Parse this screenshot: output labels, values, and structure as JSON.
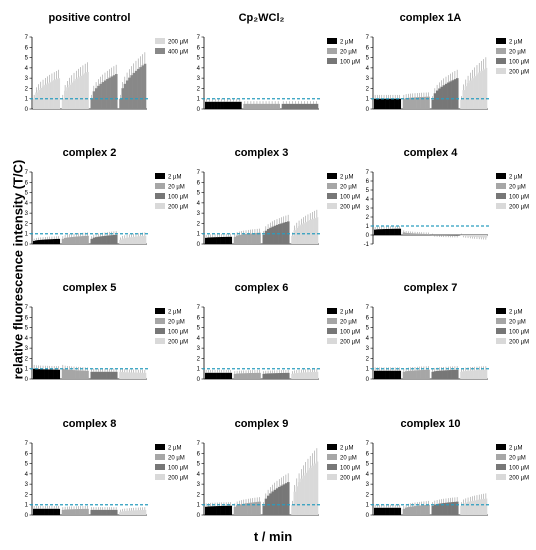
{
  "figure": {
    "ylabel": "relative fluorescence intensity (T/C)",
    "xlabel": "t / min"
  },
  "colors": {
    "2 µM": "#000000",
    "20 µM": "#a6a6a6",
    "100 µM": "#777777",
    "200 µM": "#d9d9d9",
    "reference_line": "#2a9dbf"
  },
  "chart_data": [
    {
      "type": "bar",
      "title": "positive control",
      "ylim": [
        0,
        7
      ],
      "yticks": [
        0,
        1,
        2,
        3,
        4,
        5,
        6,
        7
      ],
      "reference_line": 1,
      "series": [
        {
          "name": "200 µM",
          "segments": [
            [
              1.0,
              3.0
            ],
            [
              1.0,
              3.6
            ]
          ]
        },
        {
          "name": "400 µM",
          "segments": [
            [
              1.0,
              3.4
            ],
            [
              1.0,
              4.4
            ]
          ]
        }
      ]
    },
    {
      "type": "bar",
      "title": "Cp₂WCl₂",
      "ylim": [
        0,
        7
      ],
      "yticks": [
        0,
        1,
        2,
        3,
        4,
        5,
        6,
        7
      ],
      "reference_line": 1,
      "series": [
        {
          "name": "2 µM",
          "segments": [
            [
              0.7,
              0.7
            ]
          ]
        },
        {
          "name": "20 µM",
          "segments": [
            [
              0.5,
              0.5
            ]
          ]
        },
        {
          "name": "100 µM",
          "segments": [
            [
              0.5,
              0.5
            ]
          ]
        }
      ]
    },
    {
      "type": "bar",
      "title": "complex 1A",
      "ylim": [
        0,
        7
      ],
      "yticks": [
        0,
        1,
        2,
        3,
        4,
        5,
        6,
        7
      ],
      "reference_line": 1,
      "series": [
        {
          "name": "2 µM",
          "segments": [
            [
              1.0,
              1.0
            ]
          ]
        },
        {
          "name": "20 µM",
          "segments": [
            [
              1.0,
              1.2
            ]
          ]
        },
        {
          "name": "100 µM",
          "segments": [
            [
              0.9,
              3.0
            ]
          ]
        },
        {
          "name": "200 µM",
          "segments": [
            [
              0.9,
              4.0
            ]
          ]
        }
      ]
    },
    {
      "type": "bar",
      "title": "complex 2",
      "ylim": [
        0,
        7
      ],
      "yticks": [
        0,
        1,
        2,
        3,
        4,
        5,
        6,
        7
      ],
      "reference_line": 1,
      "series": [
        {
          "name": "2 µM",
          "segments": [
            [
              0.3,
              0.5
            ]
          ]
        },
        {
          "name": "20 µM",
          "segments": [
            [
              0.5,
              0.8
            ]
          ]
        },
        {
          "name": "100 µM",
          "segments": [
            [
              0.5,
              0.9
            ]
          ]
        },
        {
          "name": "200 µM",
          "segments": [
            [
              0.4,
              0.8
            ]
          ]
        }
      ]
    },
    {
      "type": "bar",
      "title": "complex 3",
      "ylim": [
        0,
        7
      ],
      "yticks": [
        0,
        1,
        2,
        3,
        4,
        5,
        6,
        7
      ],
      "reference_line": 1,
      "series": [
        {
          "name": "2 µM",
          "segments": [
            [
              0.6,
              0.7
            ]
          ]
        },
        {
          "name": "20 µM",
          "segments": [
            [
              0.7,
              1.1
            ]
          ]
        },
        {
          "name": "100 µM",
          "segments": [
            [
              0.9,
              2.2
            ]
          ]
        },
        {
          "name": "200 µM",
          "segments": [
            [
              0.8,
              2.6
            ]
          ]
        }
      ]
    },
    {
      "type": "bar",
      "title": "complex 4",
      "ylim": [
        -1,
        7
      ],
      "yticks": [
        -1,
        0,
        1,
        2,
        3,
        4,
        5,
        6,
        7
      ],
      "reference_line": 1,
      "series": [
        {
          "name": "2 µM",
          "segments": [
            [
              0.6,
              0.7
            ]
          ]
        },
        {
          "name": "20 µM",
          "segments": [
            [
              0.3,
              0.1
            ]
          ]
        },
        {
          "name": "100 µM",
          "segments": [
            [
              0.0,
              -0.1
            ]
          ]
        },
        {
          "name": "200 µM",
          "segments": [
            [
              0.0,
              -0.3
            ]
          ]
        }
      ]
    },
    {
      "type": "bar",
      "title": "complex 5",
      "ylim": [
        0,
        7
      ],
      "yticks": [
        0,
        1,
        2,
        3,
        4,
        5,
        6,
        7
      ],
      "reference_line": 1,
      "series": [
        {
          "name": "2 µM",
          "segments": [
            [
              1.0,
              0.9
            ]
          ]
        },
        {
          "name": "20 µM",
          "segments": [
            [
              1.0,
              0.8
            ]
          ]
        },
        {
          "name": "100 µM",
          "segments": [
            [
              0.7,
              0.7
            ]
          ]
        },
        {
          "name": "200 µM",
          "segments": [
            [
              0.7,
              0.6
            ]
          ]
        }
      ]
    },
    {
      "type": "bar",
      "title": "complex 6",
      "ylim": [
        0,
        7
      ],
      "yticks": [
        0,
        1,
        2,
        3,
        4,
        5,
        6,
        7
      ],
      "reference_line": 1,
      "series": [
        {
          "name": "2 µM",
          "segments": [
            [
              0.6,
              0.6
            ]
          ]
        },
        {
          "name": "20 µM",
          "segments": [
            [
              0.5,
              0.6
            ]
          ]
        },
        {
          "name": "100 µM",
          "segments": [
            [
              0.5,
              0.6
            ]
          ]
        },
        {
          "name": "200 µM",
          "segments": [
            [
              0.5,
              0.7
            ]
          ]
        }
      ]
    },
    {
      "type": "bar",
      "title": "complex 7",
      "ylim": [
        0,
        7
      ],
      "yticks": [
        0,
        1,
        2,
        3,
        4,
        5,
        6,
        7
      ],
      "reference_line": 1,
      "series": [
        {
          "name": "2 µM",
          "segments": [
            [
              0.8,
              0.8
            ]
          ]
        },
        {
          "name": "20 µM",
          "segments": [
            [
              0.7,
              0.9
            ]
          ]
        },
        {
          "name": "100 µM",
          "segments": [
            [
              0.7,
              0.9
            ]
          ]
        },
        {
          "name": "200 µM",
          "segments": [
            [
              0.7,
              0.9
            ]
          ]
        }
      ]
    },
    {
      "type": "bar",
      "title": "complex 8",
      "ylim": [
        0,
        7
      ],
      "yticks": [
        0,
        1,
        2,
        3,
        4,
        5,
        6,
        7
      ],
      "reference_line": 1,
      "series": [
        {
          "name": "2 µM",
          "segments": [
            [
              0.6,
              0.6
            ]
          ]
        },
        {
          "name": "20 µM",
          "segments": [
            [
              0.5,
              0.6
            ]
          ]
        },
        {
          "name": "100 µM",
          "segments": [
            [
              0.5,
              0.5
            ]
          ]
        },
        {
          "name": "200 µM",
          "segments": [
            [
              0.3,
              0.5
            ]
          ]
        }
      ]
    },
    {
      "type": "bar",
      "title": "complex 9",
      "ylim": [
        0,
        7
      ],
      "yticks": [
        0,
        1,
        2,
        3,
        4,
        5,
        6,
        7
      ],
      "reference_line": 1,
      "series": [
        {
          "name": "2 µM",
          "segments": [
            [
              0.8,
              0.9
            ]
          ]
        },
        {
          "name": "20 µM",
          "segments": [
            [
              0.8,
              1.3
            ]
          ]
        },
        {
          "name": "100 µM",
          "segments": [
            [
              0.9,
              3.2
            ]
          ]
        },
        {
          "name": "200 µM",
          "segments": [
            [
              1.0,
              5.2
            ]
          ]
        }
      ]
    },
    {
      "type": "bar",
      "title": "complex 10",
      "ylim": [
        0,
        7
      ],
      "yticks": [
        0,
        1,
        2,
        3,
        4,
        5,
        6,
        7
      ],
      "reference_line": 1,
      "series": [
        {
          "name": "2 µM",
          "segments": [
            [
              0.7,
              0.7
            ]
          ]
        },
        {
          "name": "20 µM",
          "segments": [
            [
              0.6,
              1.0
            ]
          ]
        },
        {
          "name": "100 µM",
          "segments": [
            [
              0.9,
              1.3
            ]
          ]
        },
        {
          "name": "200 µM",
          "segments": [
            [
              0.9,
              1.6
            ]
          ]
        }
      ]
    }
  ]
}
